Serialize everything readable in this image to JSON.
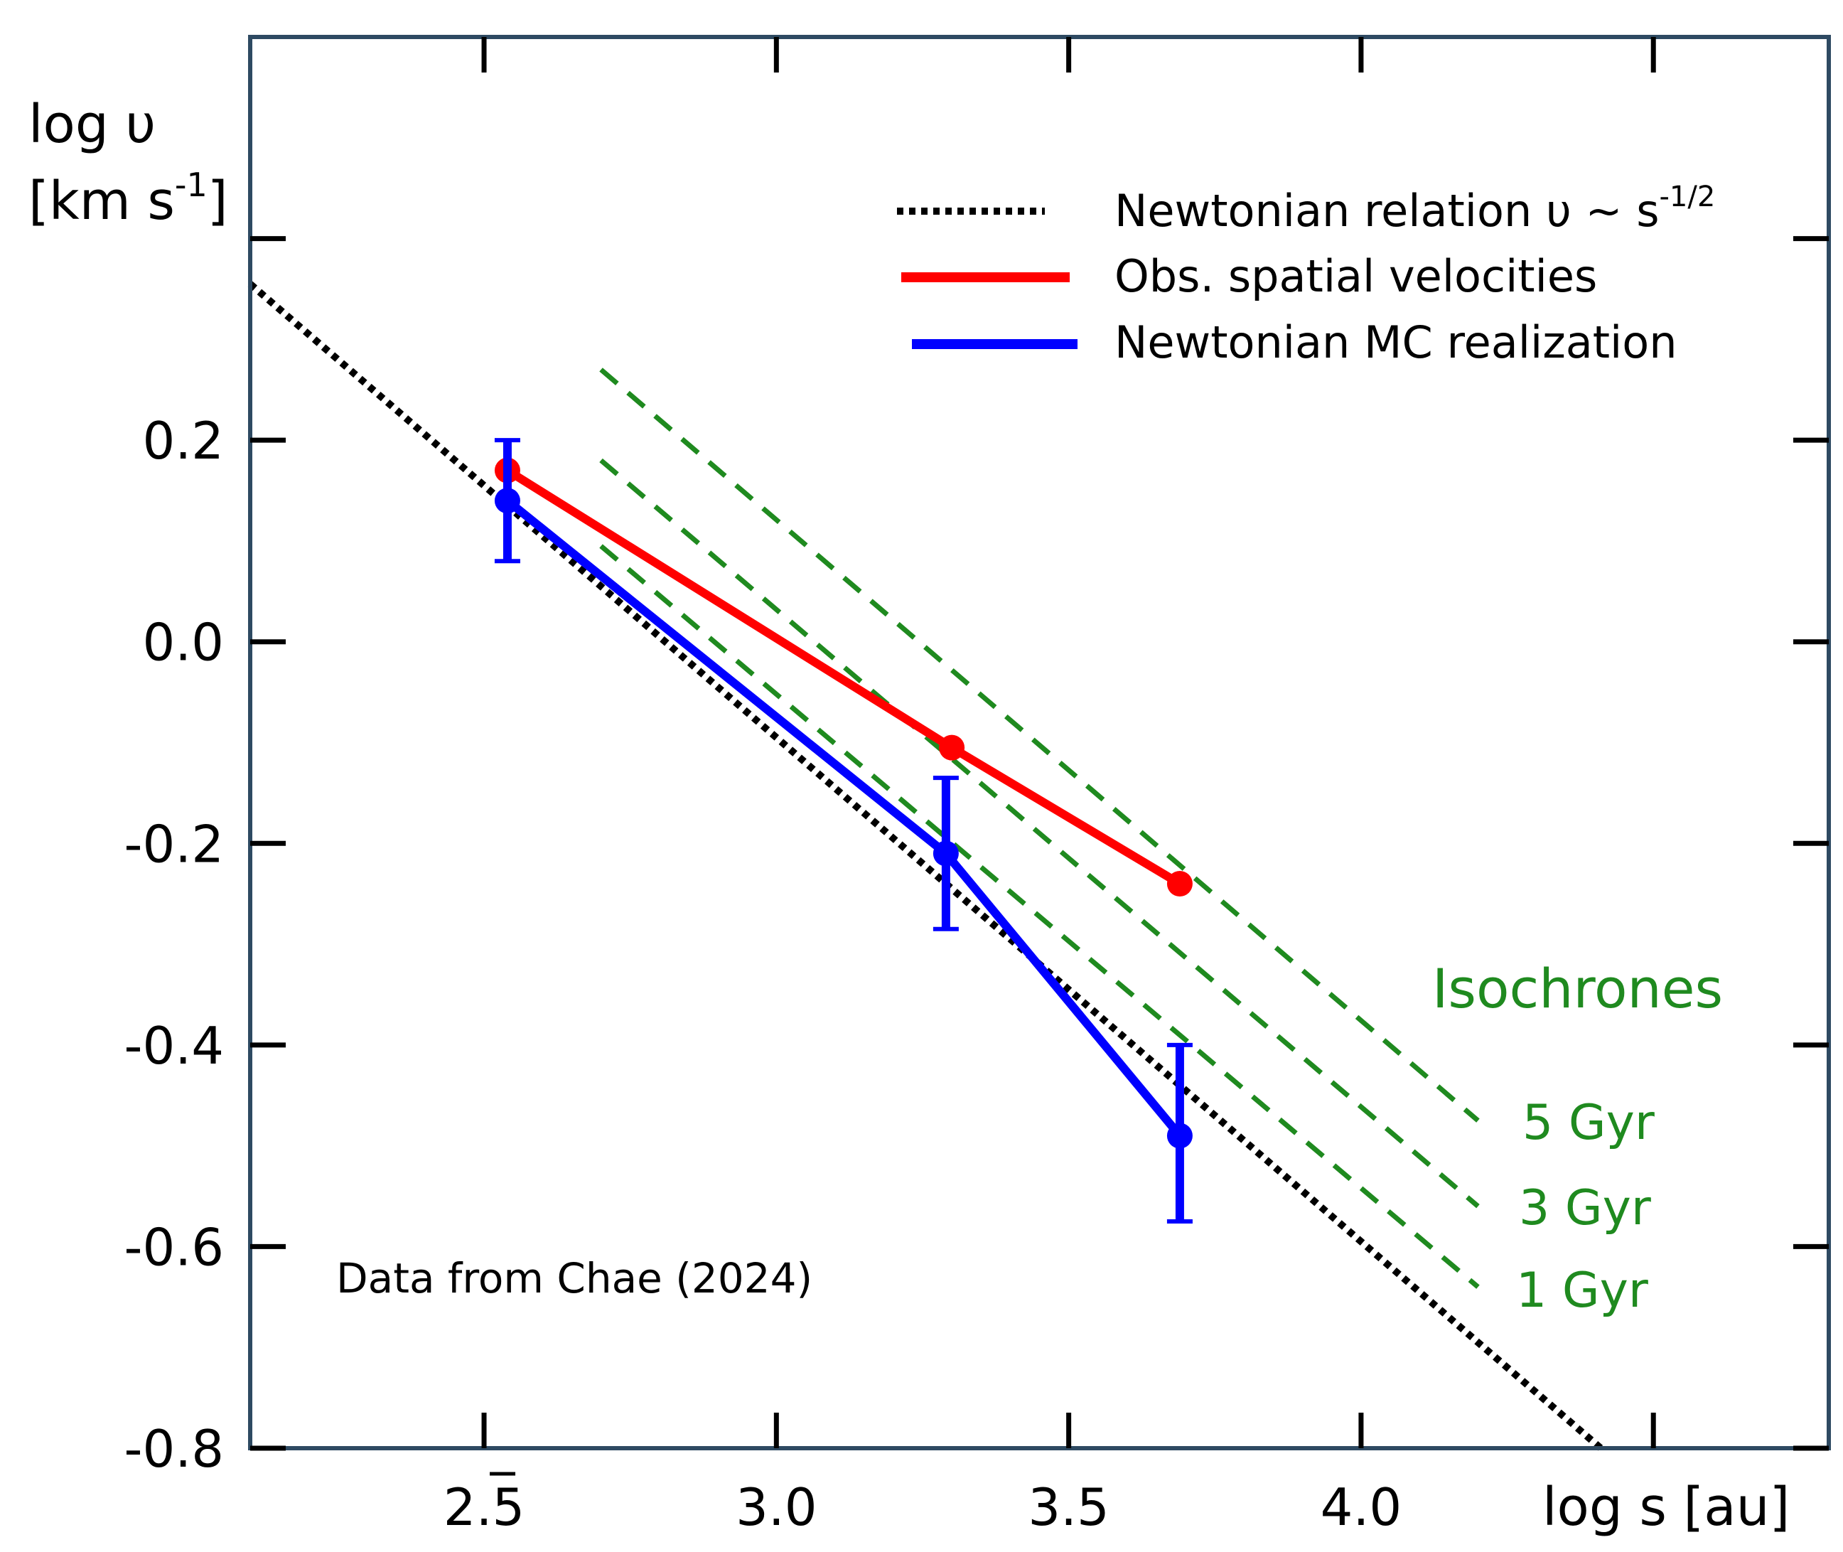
{
  "chart_data": {
    "type": "line",
    "title": "",
    "xlabel": "log s [au]",
    "ylabel_line1": "log  υ",
    "ylabel_line2": "[km s",
    "ylabel_sup": "-1",
    "ylabel_close": "]",
    "xlim": [
      2.1,
      4.8
    ],
    "ylim": [
      -0.8,
      0.6
    ],
    "x_ticks": [
      2.5,
      3.0,
      3.5,
      4.0,
      4.5
    ],
    "x_tick_labels": [
      {
        "value": 2.5,
        "text": "2.5"
      },
      {
        "value": 3.0,
        "text": "3.0"
      },
      {
        "value": 3.5,
        "text": "3.5"
      },
      {
        "value": 4.0,
        "text": "4.0"
      }
    ],
    "y_ticks": [
      -0.8,
      -0.6,
      -0.4,
      -0.2,
      0.0,
      0.2,
      0.4
    ],
    "y_tick_labels": [
      {
        "value": 0.2,
        "text": "0.2"
      },
      {
        "value": 0.0,
        "text": "0.0"
      },
      {
        "value": -0.2,
        "text": "-0.2"
      },
      {
        "value": -0.4,
        "text": "-0.4"
      },
      {
        "value": -0.6,
        "text": "-0.6"
      },
      {
        "value": -0.8,
        "text": "-0.8"
      }
    ],
    "series": [
      {
        "name": "Newtonian relation",
        "style": "dotted",
        "color": "#000000",
        "x": [
          2.1,
          4.41
        ],
        "y": [
          0.355,
          -0.8
        ]
      },
      {
        "name": "Obs. spatial velocities",
        "style": "solid",
        "color": "#ff0000",
        "x": [
          2.54,
          3.3,
          3.69
        ],
        "y": [
          0.17,
          -0.105,
          -0.24
        ]
      },
      {
        "name": "Newtonian MC realization",
        "style": "solid",
        "color": "#0000ff",
        "x": [
          2.54,
          3.29,
          3.69
        ],
        "y": [
          0.14,
          -0.21,
          -0.49
        ],
        "err_low": [
          0.08,
          -0.285,
          -0.575
        ],
        "err_high": [
          0.2,
          -0.135,
          -0.4
        ]
      }
    ],
    "isochrones": [
      {
        "name": "5 Gyr",
        "color": "#1f8a1f",
        "x": [
          2.7,
          4.2
        ],
        "y": [
          0.27,
          -0.475
        ]
      },
      {
        "name": "3 Gyr",
        "color": "#1f8a1f",
        "x": [
          2.7,
          4.2
        ],
        "y": [
          0.18,
          -0.56
        ]
      },
      {
        "name": "1 Gyr",
        "color": "#1f8a1f",
        "x": [
          2.7,
          4.2
        ],
        "y": [
          0.095,
          -0.64
        ]
      }
    ],
    "legend": {
      "placement": "top-right",
      "entries": [
        {
          "label": "Newtonian relation  υ ~ s",
          "sup": "-1/2",
          "style": "dotted",
          "color": "#000000"
        },
        {
          "label": "Obs. spatial velocities",
          "sup": "",
          "style": "solid",
          "color": "#ff0000"
        },
        {
          "label": "Newtonian MC realization",
          "sup": "",
          "style": "solid",
          "color": "#0000ff"
        }
      ]
    },
    "annotations": {
      "isochrones_title": "Isochrones",
      "source_note": "Data from Chae (2024)"
    }
  }
}
